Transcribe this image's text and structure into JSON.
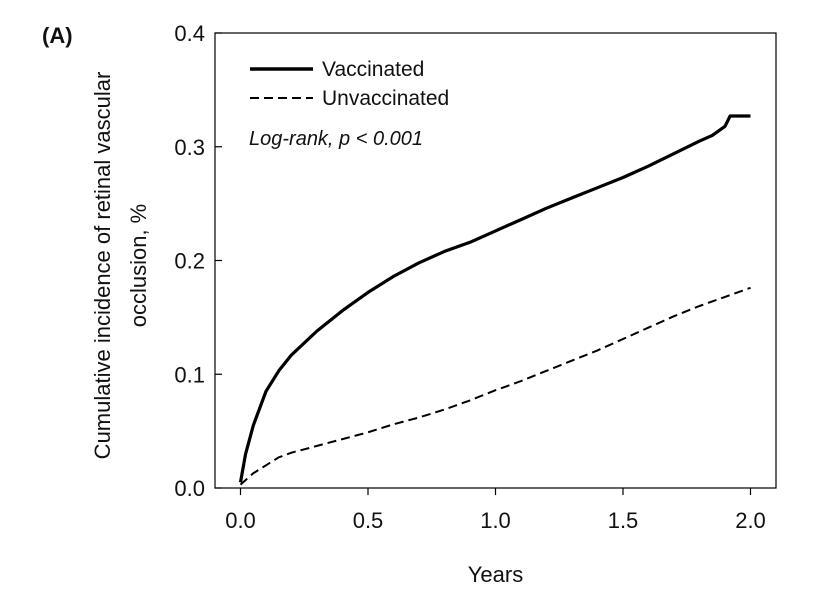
{
  "chart_data": {
    "type": "line",
    "panel_label": "(A)",
    "xlabel": "Years",
    "ylabel_lines": [
      "Cumulative incidence of retinal vascular",
      "occlusion, %"
    ],
    "xlim": [
      -0.1,
      2.1
    ],
    "ylim": [
      0,
      0.4
    ],
    "xticks": [
      0.0,
      0.5,
      1.0,
      1.5,
      2.0
    ],
    "xtick_labels": [
      "0.0",
      "0.5",
      "1.0",
      "1.5",
      "2.0"
    ],
    "yticks": [
      0.0,
      0.1,
      0.2,
      0.3,
      0.4
    ],
    "ytick_labels": [
      "0.0",
      "0.1",
      "0.2",
      "0.3",
      "0.4"
    ],
    "annotation": "Log-rank, p < 0.001",
    "legend_position": "top-left",
    "grid": false,
    "series": [
      {
        "name": "Vaccinated",
        "style": "solid",
        "color": "#000000",
        "x": [
          0.0,
          0.02,
          0.05,
          0.1,
          0.15,
          0.2,
          0.3,
          0.4,
          0.5,
          0.6,
          0.7,
          0.8,
          0.9,
          1.0,
          1.1,
          1.2,
          1.3,
          1.4,
          1.5,
          1.6,
          1.7,
          1.8,
          1.85,
          1.9,
          1.92,
          2.0
        ],
        "y": [
          0.005,
          0.03,
          0.055,
          0.085,
          0.103,
          0.117,
          0.138,
          0.156,
          0.172,
          0.186,
          0.198,
          0.208,
          0.216,
          0.226,
          0.236,
          0.246,
          0.255,
          0.264,
          0.273,
          0.283,
          0.294,
          0.305,
          0.31,
          0.318,
          0.327,
          0.327
        ]
      },
      {
        "name": "Unvaccinated",
        "style": "dashed",
        "color": "#000000",
        "x": [
          0.0,
          0.05,
          0.1,
          0.15,
          0.2,
          0.3,
          0.4,
          0.5,
          0.6,
          0.7,
          0.8,
          0.9,
          1.0,
          1.1,
          1.2,
          1.3,
          1.4,
          1.5,
          1.6,
          1.7,
          1.8,
          1.9,
          2.0
        ],
        "y": [
          0.003,
          0.013,
          0.02,
          0.027,
          0.031,
          0.037,
          0.043,
          0.049,
          0.056,
          0.062,
          0.069,
          0.077,
          0.086,
          0.094,
          0.103,
          0.112,
          0.121,
          0.131,
          0.141,
          0.151,
          0.16,
          0.168,
          0.176
        ]
      }
    ]
  }
}
